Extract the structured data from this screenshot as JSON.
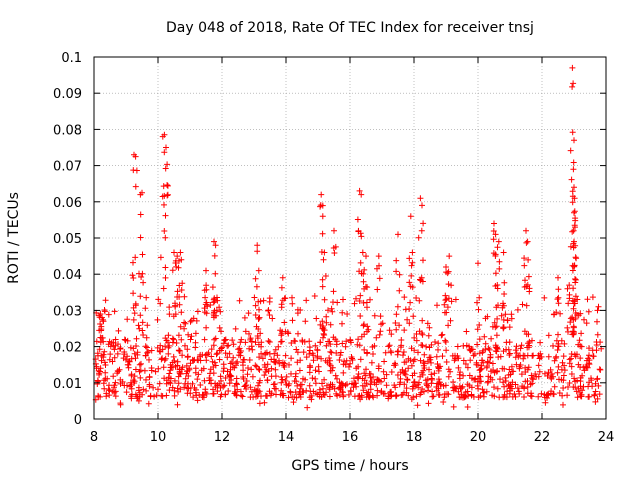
{
  "chart_data": {
    "type": "scatter",
    "title": "Day 048 of 2018, Rate Of TEC Index for receiver tnsj",
    "xlabel": "GPS time / hours",
    "ylabel": "ROTI / TECUs",
    "xlim": [
      8,
      24
    ],
    "ylim": [
      0,
      0.1
    ],
    "grid": true,
    "marker": "+",
    "x_ticks": [
      8,
      10,
      12,
      14,
      16,
      18,
      20,
      22,
      24
    ],
    "x_tick_labels": [
      "8",
      "10",
      "12",
      "14",
      "16",
      "18",
      "20",
      "22",
      "24"
    ],
    "y_ticks": [
      0,
      0.01,
      0.02,
      0.03,
      0.04,
      0.05,
      0.06,
      0.07,
      0.08,
      0.09,
      0.1
    ],
    "y_tick_labels": [
      "0",
      "0.01",
      "0.02",
      "0.03",
      "0.04",
      "0.05",
      "0.06",
      "0.07",
      "0.08",
      "0.09",
      "0.1"
    ],
    "series": [
      {
        "name": "ROTI",
        "color": "#ff0000",
        "time_range_hours": [
          8.05,
          23.85
        ],
        "typical_band": [
          0.006,
          0.022
        ],
        "peaks": [
          [
            8.2,
            0.029
          ],
          [
            8.25,
            0.028
          ],
          [
            9.25,
            0.073
          ],
          [
            9.3,
            0.0725
          ],
          [
            9.45,
            0.062
          ],
          [
            9.5,
            0.0625
          ],
          [
            10.15,
            0.078
          ],
          [
            10.2,
            0.0785
          ],
          [
            10.25,
            0.075
          ],
          [
            10.5,
            0.046
          ],
          [
            10.6,
            0.045
          ],
          [
            10.7,
            0.046
          ],
          [
            11.5,
            0.041
          ],
          [
            11.75,
            0.049
          ],
          [
            11.8,
            0.048
          ],
          [
            13.1,
            0.048
          ],
          [
            13.15,
            0.041
          ],
          [
            13.9,
            0.039
          ],
          [
            15.1,
            0.062
          ],
          [
            15.15,
            0.056
          ],
          [
            15.2,
            0.046
          ],
          [
            15.5,
            0.052
          ],
          [
            16.3,
            0.063
          ],
          [
            16.35,
            0.062
          ],
          [
            16.4,
            0.046
          ],
          [
            16.5,
            0.045
          ],
          [
            16.9,
            0.045
          ],
          [
            17.5,
            0.051
          ],
          [
            17.9,
            0.056
          ],
          [
            17.95,
            0.046
          ],
          [
            18.2,
            0.061
          ],
          [
            18.25,
            0.059
          ],
          [
            19.0,
            0.042
          ],
          [
            19.1,
            0.045
          ],
          [
            20.0,
            0.043
          ],
          [
            20.5,
            0.054
          ],
          [
            20.55,
            0.051
          ],
          [
            20.65,
            0.049
          ],
          [
            20.8,
            0.046
          ],
          [
            21.5,
            0.052
          ],
          [
            21.55,
            0.049
          ],
          [
            22.5,
            0.039
          ],
          [
            22.85,
            0.037
          ],
          [
            22.95,
            0.097
          ],
          [
            23.0,
            0.077
          ],
          [
            22.98,
            0.069
          ],
          [
            23.0,
            0.064
          ],
          [
            23.02,
            0.061
          ],
          [
            23.0,
            0.057
          ],
          [
            23.03,
            0.053
          ],
          [
            23.0,
            0.049
          ]
        ]
      }
    ]
  }
}
